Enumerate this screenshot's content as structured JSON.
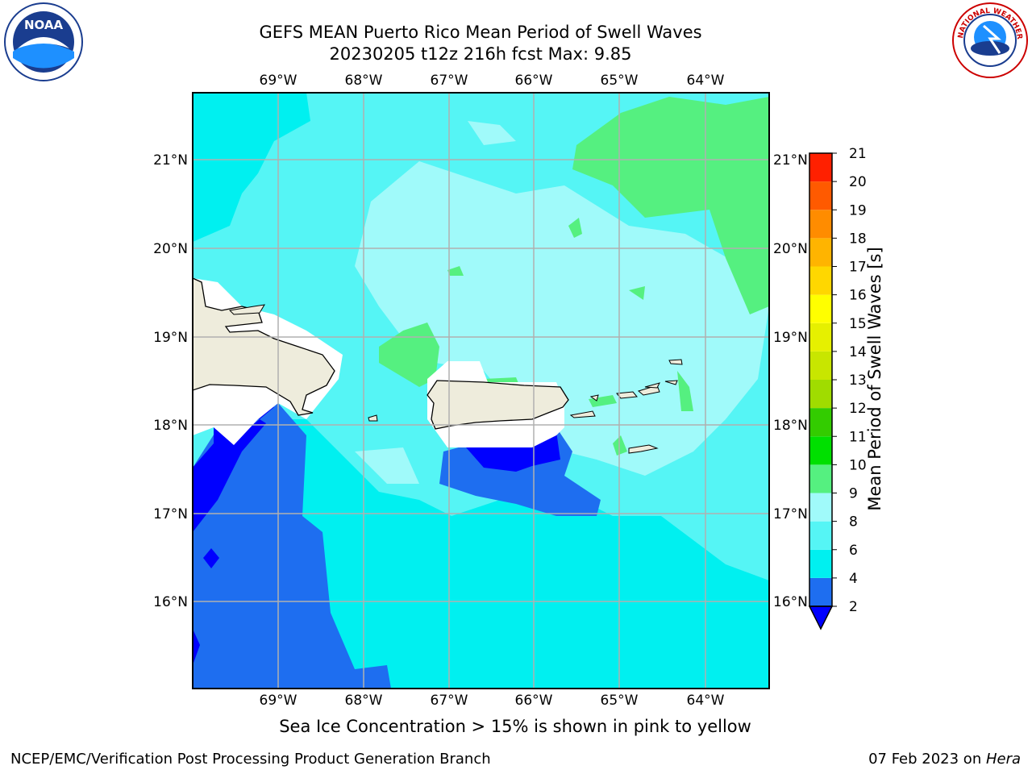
{
  "header": {
    "title_line1": "GEFS MEAN Puerto Rico Mean Period of Swell Waves",
    "title_line2": "20230205 t12z 216h fcst   Max: 9.85"
  },
  "map": {
    "lon_labels": [
      "69°W",
      "68°W",
      "67°W",
      "66°W",
      "65°W",
      "64°W"
    ],
    "lat_labels": [
      "21°N",
      "20°N",
      "19°N",
      "18°N",
      "17°N",
      "16°N"
    ],
    "grid": true,
    "colors": {
      "land": "#eeecdc",
      "missing": "#ffffff",
      "c2_4": "#1e6ef0",
      "below_2": "#0000ff",
      "c4_6": "#00f0f0",
      "c6_8": "#55f5f5",
      "c8_9": "#a0fafa",
      "c9_10": "#55f080",
      "grid": "#b0b0b0"
    }
  },
  "colorbar": {
    "label": "Mean Period of Swell Waves [s]",
    "ticks": [
      "2",
      "4",
      "6",
      "8",
      "9",
      "10",
      "11",
      "12",
      "13",
      "14",
      "15",
      "16",
      "17",
      "18",
      "19",
      "20",
      "21"
    ],
    "colors": [
      "#1e6ef0",
      "#00f0f0",
      "#55f5f5",
      "#a0fafa",
      "#55f080",
      "#00e000",
      "#33cc00",
      "#a0dc00",
      "#c8e600",
      "#e6f000",
      "#ffff00",
      "#ffd700",
      "#ffb400",
      "#ff8c00",
      "#ff5a00",
      "#ff2000"
    ],
    "under_color": "#0000ff"
  },
  "note": "Sea Ice Concentration > 15% is shown in pink to yellow",
  "footer": {
    "left": "NCEP/EMC/Verification Post Processing Product Generation Branch",
    "right_date": "07 Feb 2023 on ",
    "right_system": "Hera"
  },
  "logos": {
    "noaa_text": "NOAA",
    "nws_text": "NATIONAL WEATHER SERVICE"
  }
}
